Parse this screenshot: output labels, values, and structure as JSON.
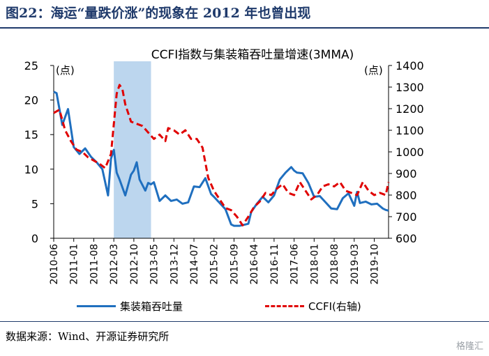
{
  "figure": {
    "title": "图22：海运“量跌价涨”的现象在 2012 年也曾出现",
    "source": "数据来源：Wind、开源证券研究所",
    "watermark": "格隆汇"
  },
  "chart_data": {
    "type": "line",
    "title": "CCFI指数与集装箱吞吐量增速(3MMA)",
    "ylabel_left": "(点)",
    "ylabel_right": "(点)",
    "ylim_left": [
      0,
      25
    ],
    "yticks_left": [
      0,
      5,
      10,
      15,
      20,
      25
    ],
    "ylim_right": [
      600,
      1400
    ],
    "yticks_right": [
      600,
      700,
      800,
      900,
      1000,
      1100,
      1200,
      1300,
      1400
    ],
    "x_range": [
      "2010-06",
      "2020-03"
    ],
    "x_tick_labels": [
      "2010-06",
      "2011-01",
      "2011-08",
      "2012-03",
      "2012-10",
      "2013-05",
      "2013-12",
      "2014-07",
      "2015-02",
      "2015-09",
      "2016-04",
      "2016-11",
      "2017-06",
      "2018-01",
      "2018-08",
      "2019-03",
      "2019-10"
    ],
    "shaded_region": [
      "2012-03",
      "2013-04"
    ],
    "legend_position": "bottom",
    "colors": {
      "series_left": "#1f6fbf",
      "series_right": "#e00000",
      "shade": "#bcd6ee"
    },
    "series": [
      {
        "name": "集装箱吞吐量",
        "axis": "left",
        "style": "solid",
        "x": [
          "2010-06",
          "2010-07",
          "2010-09",
          "2010-11",
          "2011-01",
          "2011-03",
          "2011-05",
          "2011-07",
          "2011-09",
          "2011-11",
          "2012-01",
          "2012-02",
          "2012-03",
          "2012-04",
          "2012-05",
          "2012-07",
          "2012-09",
          "2012-10",
          "2012-11",
          "2012-12",
          "2013-02",
          "2013-03",
          "2013-04",
          "2013-05",
          "2013-07",
          "2013-09",
          "2013-11",
          "2014-01",
          "2014-03",
          "2014-05",
          "2014-07",
          "2014-09",
          "2014-11",
          "2015-01",
          "2015-02",
          "2015-04",
          "2015-06",
          "2015-08",
          "2015-09",
          "2015-11",
          "2016-01",
          "2016-02",
          "2016-03",
          "2016-05",
          "2016-07",
          "2016-09",
          "2016-11",
          "2017-01",
          "2017-03",
          "2017-05",
          "2017-06",
          "2017-07",
          "2017-09",
          "2017-11",
          "2018-01",
          "2018-03",
          "2018-05",
          "2018-07",
          "2018-09",
          "2018-11",
          "2019-01",
          "2019-03",
          "2019-04",
          "2019-05",
          "2019-07",
          "2019-09",
          "2019-11",
          "2020-01",
          "2020-02",
          "2020-03"
        ],
        "values": [
          21.2,
          21.0,
          16.4,
          18.7,
          13.2,
          12.2,
          13.0,
          11.8,
          11.0,
          10.0,
          6.2,
          11.5,
          12.8,
          9.5,
          8.5,
          6.2,
          9.2,
          9.8,
          11.0,
          8.5,
          6.9,
          8.0,
          7.8,
          8.1,
          5.4,
          6.2,
          5.4,
          5.6,
          5.0,
          5.2,
          7.5,
          7.4,
          8.7,
          6.4,
          6.0,
          5.1,
          4.2,
          2.0,
          1.8,
          1.8,
          2.0,
          2.1,
          3.8,
          5.0,
          6.0,
          5.2,
          6.2,
          8.5,
          9.5,
          10.3,
          9.8,
          9.5,
          9.4,
          8.0,
          6.0,
          6.1,
          5.2,
          4.3,
          4.2,
          5.8,
          6.5,
          4.7,
          6.7,
          5.1,
          5.3,
          4.9,
          5.0,
          4.3,
          4.1,
          4.0
        ]
      },
      {
        "name": "CCFI(右轴)",
        "axis": "right",
        "style": "dashed",
        "x": [
          "2010-06",
          "2010-08",
          "2010-10",
          "2010-12",
          "2011-02",
          "2011-04",
          "2011-06",
          "2011-08",
          "2011-10",
          "2011-12",
          "2012-02",
          "2012-03",
          "2012-04",
          "2012-05",
          "2012-06",
          "2012-07",
          "2012-09",
          "2012-11",
          "2013-01",
          "2013-03",
          "2013-05",
          "2013-07",
          "2013-09",
          "2013-10",
          "2013-12",
          "2014-02",
          "2014-04",
          "2014-06",
          "2014-08",
          "2014-10",
          "2014-12",
          "2015-02",
          "2015-04",
          "2015-06",
          "2015-08",
          "2015-10",
          "2015-12",
          "2016-02",
          "2016-04",
          "2016-06",
          "2016-08",
          "2016-10",
          "2016-12",
          "2017-02",
          "2017-04",
          "2017-06",
          "2017-08",
          "2017-10",
          "2017-12",
          "2018-02",
          "2018-04",
          "2018-06",
          "2018-08",
          "2018-10",
          "2018-12",
          "2019-02",
          "2019-04",
          "2019-06",
          "2019-08",
          "2019-10",
          "2019-12",
          "2020-02",
          "2020-03"
        ],
        "values": [
          1180,
          1195,
          1100,
          1050,
          1010,
          1000,
          975,
          960,
          945,
          925,
          990,
          1130,
          1270,
          1310,
          1290,
          1220,
          1140,
          1130,
          1120,
          1090,
          1060,
          1080,
          1050,
          1110,
          1100,
          1080,
          1100,
          1060,
          1060,
          1020,
          880,
          820,
          780,
          740,
          730,
          700,
          660,
          700,
          745,
          770,
          810,
          800,
          830,
          850,
          810,
          800,
          860,
          820,
          780,
          800,
          840,
          850,
          840,
          860,
          820,
          810,
          800,
          860,
          820,
          800,
          810,
          800,
          860
        ]
      }
    ]
  }
}
